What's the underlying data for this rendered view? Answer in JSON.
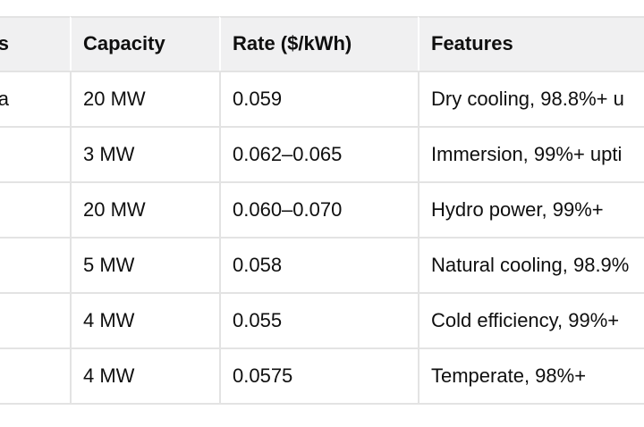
{
  "table": {
    "columns": [
      {
        "label": "s"
      },
      {
        "label": "Capacity"
      },
      {
        "label": "Rate ($/kWh)"
      },
      {
        "label": "Features"
      }
    ],
    "rows": [
      {
        "site_fragment": "a",
        "capacity": "20 MW",
        "rate": "0.059",
        "features": "Dry cooling, 98.8%+ u"
      },
      {
        "site_fragment": "",
        "capacity": "3 MW",
        "rate": "0.062–0.065",
        "features": "Immersion, 99%+ upti"
      },
      {
        "site_fragment": "",
        "capacity": "20 MW",
        "rate": "0.060–0.070",
        "features": "Hydro power, 99%+"
      },
      {
        "site_fragment": "",
        "capacity": "5 MW",
        "rate": "0.058",
        "features": "Natural cooling, 98.9%"
      },
      {
        "site_fragment": "",
        "capacity": "4 MW",
        "rate": "0.055",
        "features": "Cold efficiency, 99%+"
      },
      {
        "site_fragment": "",
        "capacity": "4 MW",
        "rate": "0.0575",
        "features": "Temperate, 98%+"
      }
    ]
  },
  "colors": {
    "background": "#ffffff",
    "header_background": "#f0f0f1",
    "border": "#e3e3e3",
    "text": "#0f0f0f"
  }
}
